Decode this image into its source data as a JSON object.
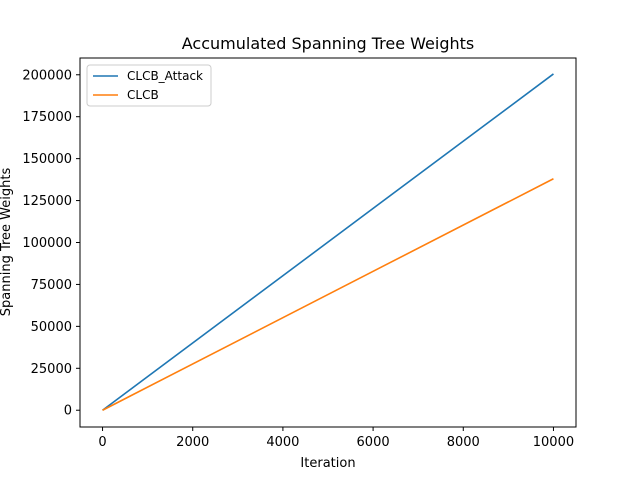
{
  "chart_data": {
    "type": "line",
    "title": "Accumulated Spanning Tree Weights",
    "xlabel": "Iteration",
    "ylabel": "Spanning Tree Weights",
    "xlim": [
      -500,
      10500
    ],
    "ylim": [
      -10000,
      210000
    ],
    "xticks": [
      0,
      2000,
      4000,
      6000,
      8000,
      10000
    ],
    "yticks": [
      0,
      25000,
      50000,
      75000,
      100000,
      125000,
      150000,
      175000,
      200000
    ],
    "grid": false,
    "legend_position": "top-left",
    "series": [
      {
        "name": "CLCB_Attack",
        "color": "#1f77b4",
        "x": [
          0,
          10000
        ],
        "y": [
          0,
          200500
        ]
      },
      {
        "name": "CLCB",
        "color": "#ff7f0e",
        "x": [
          0,
          10000
        ],
        "y": [
          0,
          138000
        ]
      }
    ]
  }
}
